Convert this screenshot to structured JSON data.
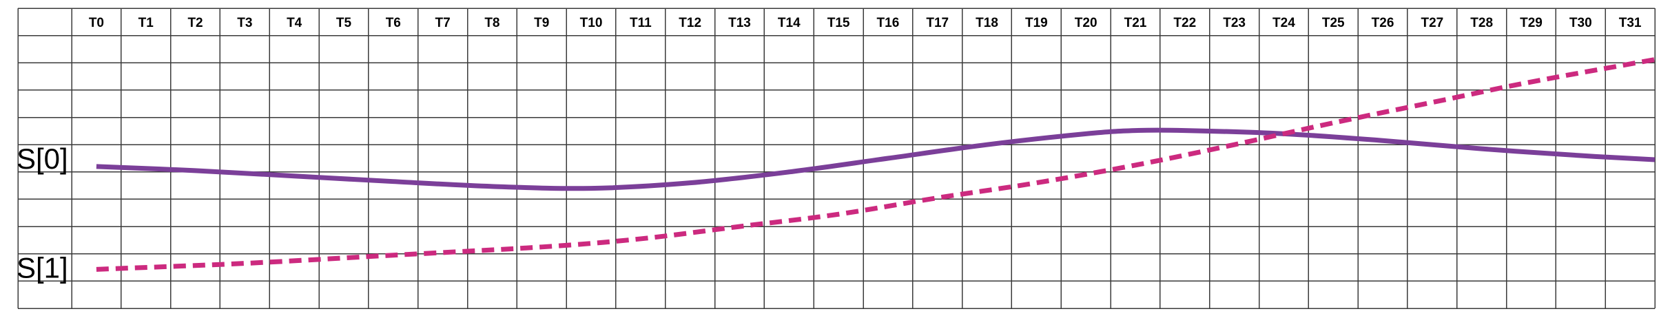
{
  "diagram": {
    "time_steps": [
      "T0",
      "T1",
      "T2",
      "T3",
      "T4",
      "T5",
      "T6",
      "T7",
      "T8",
      "T9",
      "T10",
      "T11",
      "T12",
      "T13",
      "T14",
      "T15",
      "T16",
      "T17",
      "T18",
      "T19",
      "T20",
      "T21",
      "T22",
      "T23",
      "T24",
      "T25",
      "T26",
      "T27",
      "T28",
      "T29",
      "T30",
      "T31"
    ],
    "signals": [
      {
        "name": "S[0]",
        "color": "#7b3f99",
        "style": "solid",
        "points": [
          {
            "t": 0,
            "y": 5.2
          },
          {
            "t": 2,
            "y": 5.05
          },
          {
            "t": 4,
            "y": 4.85
          },
          {
            "t": 6,
            "y": 4.65
          },
          {
            "t": 8,
            "y": 4.47
          },
          {
            "t": 10,
            "y": 4.4
          },
          {
            "t": 12,
            "y": 4.6
          },
          {
            "t": 14,
            "y": 5.0
          },
          {
            "t": 16,
            "y": 5.5
          },
          {
            "t": 18,
            "y": 6.0
          },
          {
            "t": 20,
            "y": 6.4
          },
          {
            "t": 21,
            "y": 6.52
          },
          {
            "t": 22,
            "y": 6.52
          },
          {
            "t": 24,
            "y": 6.4
          },
          {
            "t": 26,
            "y": 6.15
          },
          {
            "t": 28,
            "y": 5.85
          },
          {
            "t": 30,
            "y": 5.6
          },
          {
            "t": 31.5,
            "y": 5.45
          }
        ]
      },
      {
        "name": "S[1]",
        "color": "#cc2a7f",
        "style": "dashed",
        "points": [
          {
            "t": 0,
            "y": 1.43
          },
          {
            "t": 3,
            "y": 1.65
          },
          {
            "t": 6,
            "y": 1.95
          },
          {
            "t": 9,
            "y": 2.25
          },
          {
            "t": 11,
            "y": 2.55
          },
          {
            "t": 13,
            "y": 3.0
          },
          {
            "t": 15,
            "y": 3.45
          },
          {
            "t": 17,
            "y": 4.05
          },
          {
            "t": 19,
            "y": 4.6
          },
          {
            "t": 21,
            "y": 5.25
          },
          {
            "t": 23,
            "y": 6.0
          },
          {
            "t": 25,
            "y": 6.8
          },
          {
            "t": 27,
            "y": 7.55
          },
          {
            "t": 29,
            "y": 8.3
          },
          {
            "t": 31.5,
            "y": 9.12
          }
        ]
      }
    ]
  }
}
